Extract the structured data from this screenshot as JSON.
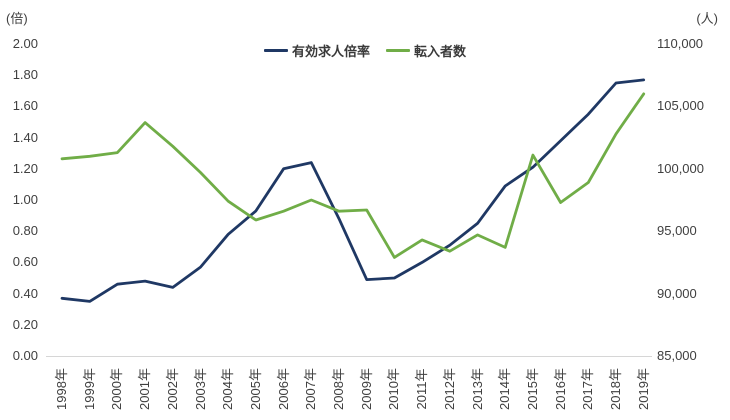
{
  "header": {
    "left_unit_label": "(倍)",
    "right_unit_label": "(人)"
  },
  "legend": [
    {
      "label": "有効求人倍率",
      "color": "#1f3864"
    },
    {
      "label": "転入者数",
      "color": "#70ad47"
    }
  ],
  "chart_data": {
    "type": "line",
    "title": "",
    "grid": false,
    "legend_position": "top",
    "categories": [
      "1998年",
      "1999年",
      "2000年",
      "2001年",
      "2002年",
      "2003年",
      "2004年",
      "2005年",
      "2006年",
      "2007年",
      "2008年",
      "2009年",
      "2010年",
      "2011年",
      "2012年",
      "2013年",
      "2014年",
      "2015年",
      "2016年",
      "2017年",
      "2018年",
      "2019年"
    ],
    "series": [
      {
        "name": "有効求人倍率",
        "axis": "left",
        "color": "#1f3864",
        "values": [
          0.37,
          0.35,
          0.46,
          0.48,
          0.44,
          0.57,
          0.78,
          0.93,
          1.2,
          1.24,
          0.88,
          0.49,
          0.5,
          0.6,
          0.71,
          0.85,
          1.09,
          1.21,
          1.38,
          1.55,
          1.75,
          1.77
        ]
      },
      {
        "name": "転入者数",
        "axis": "right",
        "color": "#70ad47",
        "values": [
          100800,
          101000,
          101300,
          103700,
          101800,
          99700,
          97400,
          95900,
          96600,
          97500,
          96600,
          96700,
          92900,
          94300,
          93400,
          94700,
          93700,
          101100,
          97300,
          98900,
          102800,
          106000
        ]
      }
    ],
    "left_axis": {
      "unit": "(倍)",
      "min": 0,
      "max": 2,
      "step": 0.2,
      "tick_labels": [
        "0.00",
        "0.20",
        "0.40",
        "0.60",
        "0.80",
        "1.00",
        "1.20",
        "1.40",
        "1.60",
        "1.80",
        "2.00"
      ]
    },
    "right_axis": {
      "unit": "(人)",
      "min": 85000,
      "max": 110000,
      "step": 5000,
      "tick_labels": [
        "85,000",
        "90,000",
        "95,000",
        "100,000",
        "105,000",
        "110,000"
      ]
    }
  }
}
